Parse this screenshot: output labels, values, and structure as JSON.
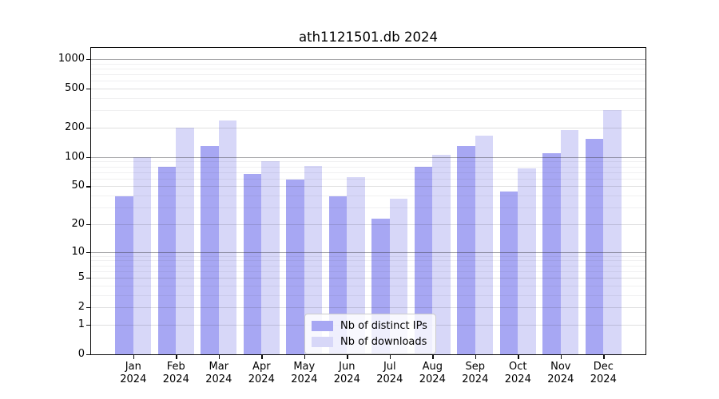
{
  "chart_data": {
    "type": "bar",
    "title": "ath1121501.db 2024",
    "categories": [
      "Jan",
      "Feb",
      "Mar",
      "Apr",
      "May",
      "Jun",
      "Jul",
      "Aug",
      "Sep",
      "Oct",
      "Nov",
      "Dec"
    ],
    "category_year": "2024",
    "series": [
      {
        "name": "Nb of distinct IPs",
        "color": "#a7a7f3",
        "values": [
          39,
          80,
          130,
          67,
          59,
          39,
          23,
          79,
          130,
          44,
          110,
          153
        ]
      },
      {
        "name": "Nb of downloads",
        "color": "#d7d7f8",
        "values": [
          100,
          200,
          235,
          91,
          81,
          62,
          37,
          106,
          165,
          77,
          190,
          305
        ]
      }
    ],
    "y_axis": {
      "scale": "log1p",
      "tick_labels": [
        0,
        1,
        2,
        5,
        10,
        20,
        50,
        100,
        200,
        500,
        1000
      ],
      "range_top": 1300
    },
    "xlabel": "",
    "ylabel": "",
    "legend_position": "lower center",
    "grid": true,
    "background_color": "#ffffff"
  }
}
